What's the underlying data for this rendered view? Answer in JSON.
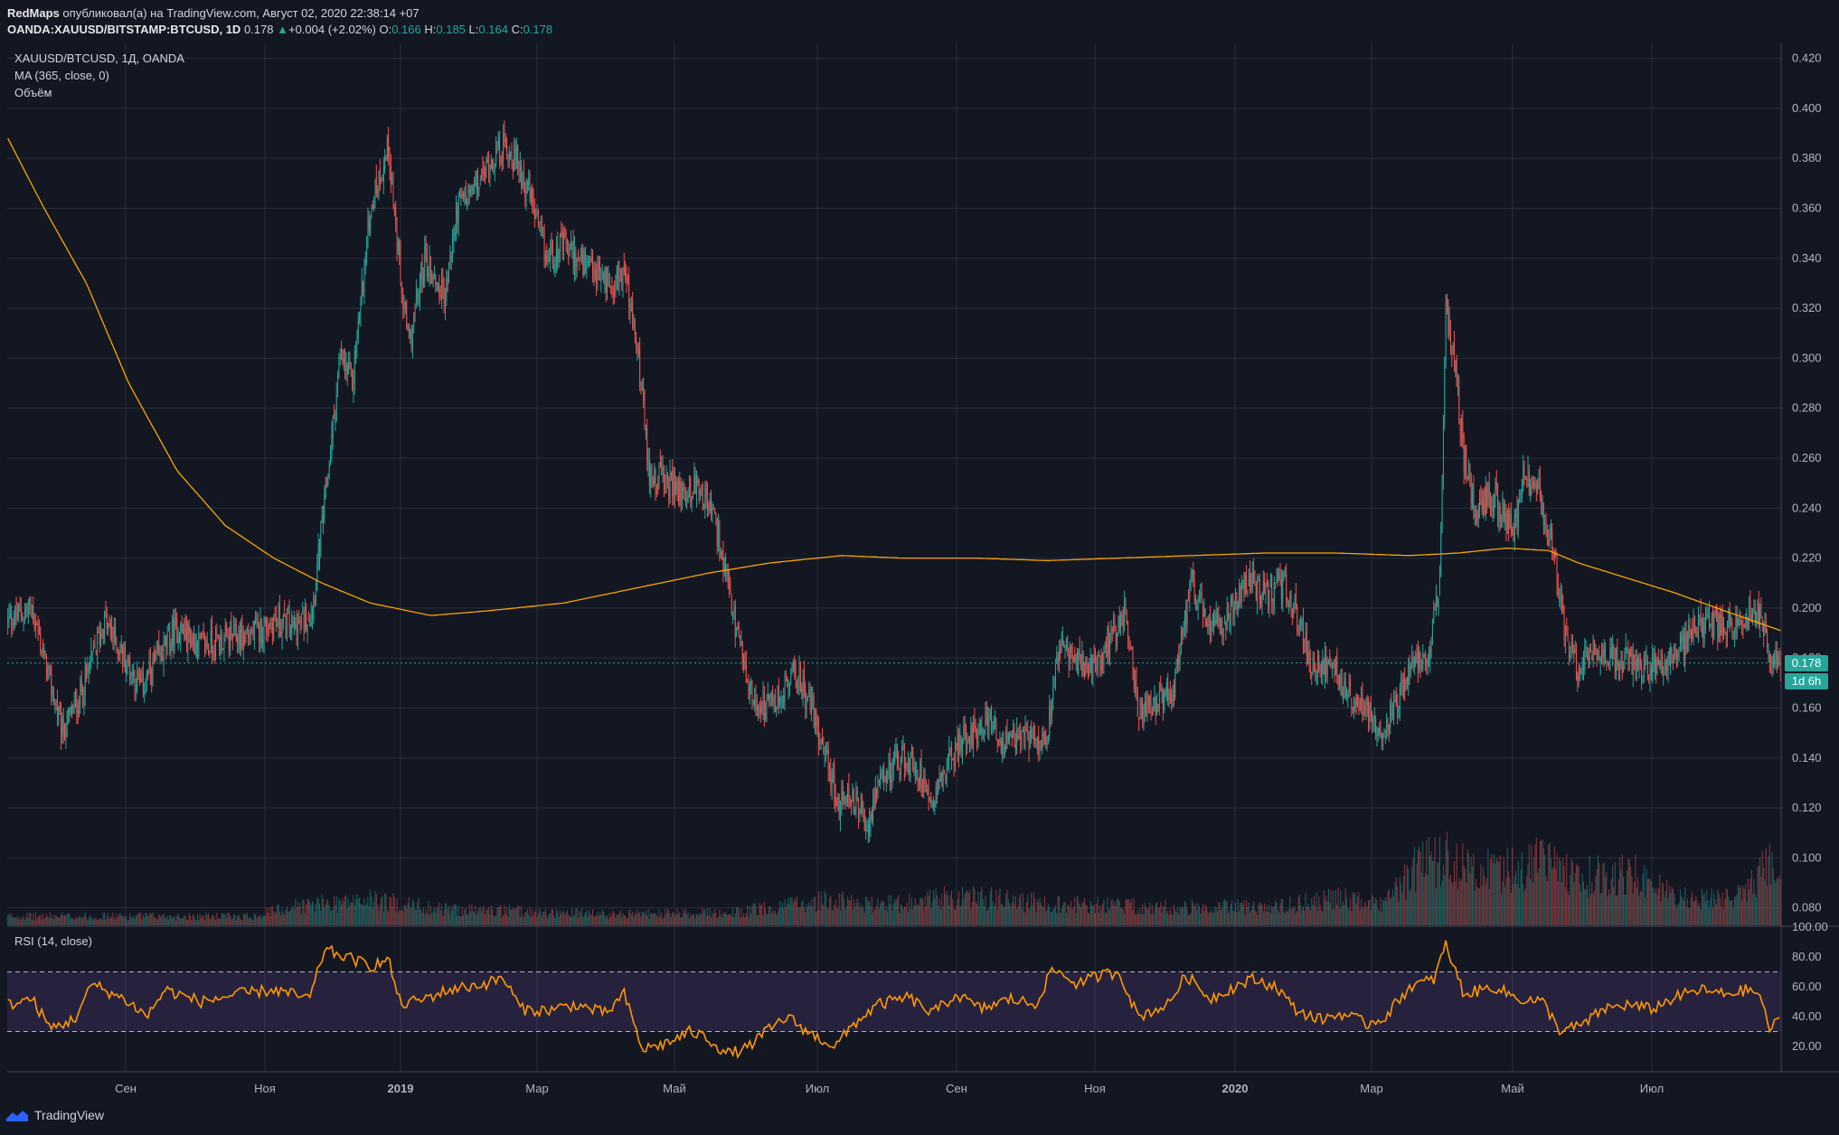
{
  "header": {
    "user": "RedMaps",
    "published": "опубликовал(а) на TradingView.com, Август 02, 2020 22:38:14 +07",
    "symbol": "OANDA:XAUUSD/BITSTAMP:BTCUSD, 1D",
    "last": "0.178",
    "change": "+0.004 (+2.02%)",
    "o_label": "O:",
    "o": "0.166",
    "h_label": "H:",
    "h": "0.185",
    "l_label": "L:",
    "l": "0.164",
    "c_label": "C:",
    "c": "0.178"
  },
  "legend": {
    "title": "XAUUSD/BTCUSD, 1Д, OANDA",
    "ma": "MA (365, close, 0)",
    "volume": "Объём",
    "rsi": "RSI (14, close)"
  },
  "price_badge": "0.178",
  "timer_badge": "1d 6h",
  "footer": {
    "brand": "TradingView"
  },
  "colors": {
    "background": "#131722",
    "up": "#26a69a",
    "down": "#ef5350",
    "ma": "#f7a600",
    "rsi": "#ff9800",
    "rsi_band": "#7e57c2"
  },
  "chart_data": [
    {
      "type": "candlestick",
      "title": "XAUUSD/BTCUSD, 1Д, OANDA",
      "x_ticks": [
        "Сен",
        "Ноя",
        "2019",
        "Мар",
        "Май",
        "Июл",
        "Сен",
        "Ноя",
        "2020",
        "Мар",
        "Май",
        "Июл"
      ],
      "y_ticks": [
        "0.420",
        "0.400",
        "0.380",
        "0.360",
        "0.340",
        "0.320",
        "0.300",
        "0.280",
        "0.260",
        "0.240",
        "0.220",
        "0.200",
        "0.180",
        "0.160",
        "0.140",
        "0.120",
        "0.100",
        "0.080"
      ],
      "ylim": [
        0.073,
        0.426
      ],
      "close_path": [
        [
          0,
          0.195
        ],
        [
          20,
          0.2
        ],
        [
          45,
          0.15
        ],
        [
          60,
          0.165
        ],
        [
          80,
          0.195
        ],
        [
          110,
          0.168
        ],
        [
          125,
          0.18
        ],
        [
          140,
          0.192
        ],
        [
          160,
          0.185
        ],
        [
          185,
          0.188
        ],
        [
          205,
          0.19
        ],
        [
          220,
          0.195
        ],
        [
          240,
          0.192
        ],
        [
          252,
          0.2
        ],
        [
          262,
          0.24
        ],
        [
          275,
          0.3
        ],
        [
          285,
          0.29
        ],
        [
          300,
          0.36
        ],
        [
          315,
          0.385
        ],
        [
          325,
          0.33
        ],
        [
          332,
          0.305
        ],
        [
          345,
          0.34
        ],
        [
          355,
          0.33
        ],
        [
          362,
          0.325
        ],
        [
          372,
          0.36
        ],
        [
          390,
          0.37
        ],
        [
          400,
          0.38
        ],
        [
          412,
          0.385
        ],
        [
          422,
          0.378
        ],
        [
          432,
          0.365
        ],
        [
          445,
          0.34
        ],
        [
          460,
          0.345
        ],
        [
          480,
          0.335
        ],
        [
          500,
          0.33
        ],
        [
          510,
          0.335
        ],
        [
          522,
          0.3
        ],
        [
          530,
          0.255
        ],
        [
          545,
          0.25
        ],
        [
          560,
          0.245
        ],
        [
          572,
          0.25
        ],
        [
          585,
          0.235
        ],
        [
          595,
          0.21
        ],
        [
          605,
          0.185
        ],
        [
          615,
          0.165
        ],
        [
          628,
          0.16
        ],
        [
          640,
          0.165
        ],
        [
          652,
          0.175
        ],
        [
          665,
          0.16
        ],
        [
          675,
          0.145
        ],
        [
          688,
          0.12
        ],
        [
          698,
          0.125
        ],
        [
          710,
          0.112
        ],
        [
          722,
          0.128
        ],
        [
          735,
          0.14
        ],
        [
          750,
          0.138
        ],
        [
          765,
          0.125
        ],
        [
          780,
          0.14
        ],
        [
          795,
          0.15
        ],
        [
          812,
          0.155
        ],
        [
          825,
          0.145
        ],
        [
          840,
          0.148
        ],
        [
          860,
          0.15
        ],
        [
          870,
          0.185
        ],
        [
          885,
          0.178
        ],
        [
          900,
          0.175
        ],
        [
          915,
          0.19
        ],
        [
          925,
          0.2
        ],
        [
          935,
          0.158
        ],
        [
          950,
          0.16
        ],
        [
          965,
          0.168
        ],
        [
          980,
          0.21
        ],
        [
          995,
          0.19
        ],
        [
          1010,
          0.198
        ],
        [
          1025,
          0.212
        ],
        [
          1040,
          0.205
        ],
        [
          1055,
          0.21
        ],
        [
          1065,
          0.2
        ],
        [
          1080,
          0.175
        ],
        [
          1095,
          0.178
        ],
        [
          1110,
          0.165
        ],
        [
          1125,
          0.16
        ],
        [
          1138,
          0.152
        ],
        [
          1148,
          0.16
        ],
        [
          1160,
          0.175
        ],
        [
          1175,
          0.18
        ],
        [
          1185,
          0.21
        ],
        [
          1190,
          0.32
        ],
        [
          1198,
          0.295
        ],
        [
          1205,
          0.26
        ],
        [
          1215,
          0.24
        ],
        [
          1230,
          0.245
        ],
        [
          1245,
          0.23
        ],
        [
          1255,
          0.255
        ],
        [
          1268,
          0.245
        ],
        [
          1280,
          0.22
        ],
        [
          1290,
          0.185
        ],
        [
          1300,
          0.175
        ],
        [
          1312,
          0.185
        ],
        [
          1325,
          0.18
        ],
        [
          1340,
          0.18
        ],
        [
          1355,
          0.175
        ],
        [
          1370,
          0.178
        ],
        [
          1385,
          0.185
        ],
        [
          1400,
          0.195
        ],
        [
          1415,
          0.192
        ],
        [
          1430,
          0.196
        ],
        [
          1450,
          0.198
        ],
        [
          1457,
          0.182
        ],
        [
          1467,
          0.178
        ]
      ],
      "ma_path": [
        [
          0,
          0.388
        ],
        [
          30,
          0.36
        ],
        [
          65,
          0.33
        ],
        [
          100,
          0.29
        ],
        [
          140,
          0.255
        ],
        [
          180,
          0.233
        ],
        [
          220,
          0.22
        ],
        [
          260,
          0.21
        ],
        [
          300,
          0.202
        ],
        [
          350,
          0.197
        ],
        [
          400,
          0.199
        ],
        [
          460,
          0.202
        ],
        [
          520,
          0.208
        ],
        [
          580,
          0.214
        ],
        [
          630,
          0.218
        ],
        [
          690,
          0.221
        ],
        [
          740,
          0.22
        ],
        [
          800,
          0.22
        ],
        [
          860,
          0.219
        ],
        [
          920,
          0.22
        ],
        [
          980,
          0.221
        ],
        [
          1040,
          0.222
        ],
        [
          1100,
          0.222
        ],
        [
          1160,
          0.221
        ],
        [
          1200,
          0.222
        ],
        [
          1240,
          0.224
        ],
        [
          1275,
          0.223
        ],
        [
          1300,
          0.218
        ],
        [
          1340,
          0.212
        ],
        [
          1380,
          0.206
        ],
        [
          1420,
          0.199
        ],
        [
          1467,
          0.191
        ]
      ],
      "ma_label": "MA (365, close, 0)"
    },
    {
      "type": "bar",
      "name": "Объём",
      "profile": [
        [
          0,
          0.25
        ],
        [
          200,
          0.25
        ],
        [
          240,
          0.55
        ],
        [
          300,
          0.7
        ],
        [
          360,
          0.45
        ],
        [
          500,
          0.3
        ],
        [
          600,
          0.35
        ],
        [
          680,
          0.7
        ],
        [
          720,
          0.55
        ],
        [
          790,
          0.8
        ],
        [
          860,
          0.6
        ],
        [
          950,
          0.5
        ],
        [
          1050,
          0.5
        ],
        [
          1100,
          0.75
        ],
        [
          1140,
          0.6
        ],
        [
          1165,
          1.6
        ],
        [
          1190,
          1.9
        ],
        [
          1215,
          1.45
        ],
        [
          1255,
          1.55
        ],
        [
          1270,
          1.75
        ],
        [
          1300,
          1.35
        ],
        [
          1330,
          1.45
        ],
        [
          1360,
          1.3
        ],
        [
          1380,
          0.75
        ],
        [
          1420,
          0.7
        ],
        [
          1445,
          1.2
        ],
        [
          1457,
          1.65
        ],
        [
          1467,
          1.05
        ]
      ]
    },
    {
      "type": "line",
      "name": "RSI (14, close)",
      "y_ticks": [
        "100.00",
        "80.00",
        "60.00",
        "40.00",
        "20.00"
      ],
      "ylim": [
        3,
        100
      ],
      "upper_band": 70,
      "lower_band": 30,
      "values": [
        [
          0,
          48
        ],
        [
          20,
          52
        ],
        [
          35,
          32
        ],
        [
          55,
          38
        ],
        [
          70,
          62
        ],
        [
          100,
          50
        ],
        [
          115,
          40
        ],
        [
          130,
          58
        ],
        [
          160,
          50
        ],
        [
          190,
          55
        ],
        [
          220,
          58
        ],
        [
          250,
          52
        ],
        [
          262,
          85
        ],
        [
          280,
          80
        ],
        [
          300,
          74
        ],
        [
          315,
          78
        ],
        [
          325,
          48
        ],
        [
          345,
          52
        ],
        [
          365,
          58
        ],
        [
          395,
          62
        ],
        [
          410,
          66
        ],
        [
          425,
          45
        ],
        [
          445,
          44
        ],
        [
          470,
          48
        ],
        [
          495,
          42
        ],
        [
          510,
          55
        ],
        [
          525,
          18
        ],
        [
          545,
          22
        ],
        [
          565,
          30
        ],
        [
          580,
          25
        ],
        [
          595,
          15
        ],
        [
          610,
          18
        ],
        [
          628,
          30
        ],
        [
          645,
          40
        ],
        [
          665,
          28
        ],
        [
          685,
          20
        ],
        [
          700,
          35
        ],
        [
          720,
          48
        ],
        [
          745,
          53
        ],
        [
          765,
          42
        ],
        [
          785,
          55
        ],
        [
          805,
          45
        ],
        [
          830,
          52
        ],
        [
          850,
          48
        ],
        [
          865,
          72
        ],
        [
          885,
          62
        ],
        [
          905,
          68
        ],
        [
          920,
          70
        ],
        [
          935,
          40
        ],
        [
          960,
          48
        ],
        [
          975,
          68
        ],
        [
          995,
          52
        ],
        [
          1015,
          60
        ],
        [
          1030,
          65
        ],
        [
          1050,
          60
        ],
        [
          1065,
          45
        ],
        [
          1085,
          38
        ],
        [
          1105,
          42
        ],
        [
          1125,
          35
        ],
        [
          1140,
          40
        ],
        [
          1160,
          60
        ],
        [
          1180,
          65
        ],
        [
          1190,
          88
        ],
        [
          1205,
          55
        ],
        [
          1230,
          60
        ],
        [
          1250,
          52
        ],
        [
          1270,
          50
        ],
        [
          1285,
          30
        ],
        [
          1305,
          35
        ],
        [
          1320,
          45
        ],
        [
          1340,
          48
        ],
        [
          1360,
          45
        ],
        [
          1380,
          53
        ],
        [
          1400,
          58
        ],
        [
          1420,
          55
        ],
        [
          1440,
          58
        ],
        [
          1450,
          55
        ],
        [
          1457,
          32
        ],
        [
          1467,
          37
        ]
      ]
    }
  ]
}
